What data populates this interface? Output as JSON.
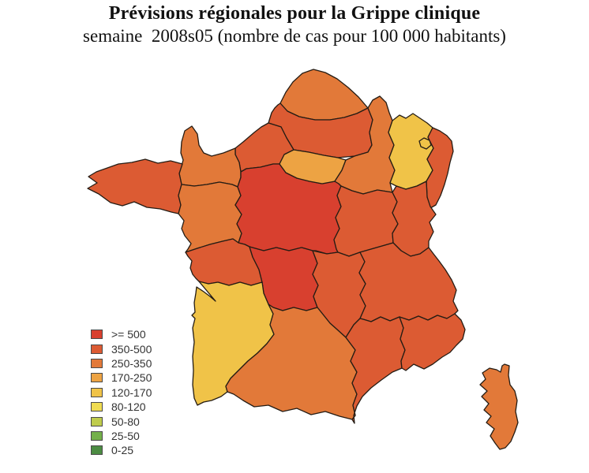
{
  "header": {
    "title": "Prévisions régionales pour la Grippe clinique",
    "subtitle": "semaine  2008s05 (nombre de cas pour 100 000 habitants)"
  },
  "legend": {
    "items": [
      {
        "label": ">= 500",
        "color": "#d8402f"
      },
      {
        "label": "350-500",
        "color": "#dc5b33"
      },
      {
        "label": "250-350",
        "color": "#e27939"
      },
      {
        "label": "170-250",
        "color": "#eda343"
      },
      {
        "label": "120-170",
        "color": "#f0c348"
      },
      {
        "label": "80-120",
        "color": "#f0dc52"
      },
      {
        "label": "50-80",
        "color": "#bfcc4c"
      },
      {
        "label": "25-50",
        "color": "#74b04a"
      },
      {
        "label": "0-25",
        "color": "#4c8c43"
      }
    ]
  },
  "chart_data": {
    "type": "choropleth-map",
    "title": "Prévisions régionales pour la Grippe clinique",
    "subtitle": "semaine  2008s05 (nombre de cas pour 100 000 habitants)",
    "unit": "cas pour 100 000 habitants",
    "week": "2008s05",
    "regions": [
      {
        "id": "nord-pas-de-calais",
        "name": "Nord-Pas-de-Calais",
        "value": "250-350"
      },
      {
        "id": "picardie",
        "name": "Picardie",
        "value": "350-500"
      },
      {
        "id": "haute-normandie",
        "name": "Haute-Normandie",
        "value": "350-500"
      },
      {
        "id": "basse-normandie",
        "name": "Basse-Normandie",
        "value": "250-350"
      },
      {
        "id": "bretagne",
        "name": "Bretagne",
        "value": "350-500"
      },
      {
        "id": "pays-de-la-loire",
        "name": "Pays de la Loire",
        "value": "250-350"
      },
      {
        "id": "centre",
        "name": "Centre",
        "value": ">= 500"
      },
      {
        "id": "ile-de-france",
        "name": "Île-de-France",
        "value": "170-250"
      },
      {
        "id": "champagne-ardenne",
        "name": "Champagne-Ardenne",
        "value": "250-350"
      },
      {
        "id": "lorraine",
        "name": "Lorraine",
        "value": "120-170"
      },
      {
        "id": "alsace",
        "name": "Alsace",
        "value": "350-500"
      },
      {
        "id": "bourgogne",
        "name": "Bourgogne",
        "value": "350-500"
      },
      {
        "id": "franche-comte",
        "name": "Franche-Comté",
        "value": "350-500"
      },
      {
        "id": "poitou-charentes",
        "name": "Poitou-Charentes",
        "value": "350-500"
      },
      {
        "id": "limousin",
        "name": "Limousin",
        "value": ">= 500"
      },
      {
        "id": "auvergne",
        "name": "Auvergne",
        "value": "350-500"
      },
      {
        "id": "rhone-alpes",
        "name": "Rhône-Alpes",
        "value": "350-500"
      },
      {
        "id": "aquitaine",
        "name": "Aquitaine",
        "value": "120-170"
      },
      {
        "id": "midi-pyrenees",
        "name": "Midi-Pyrénées",
        "value": "250-350"
      },
      {
        "id": "languedoc-roussillon",
        "name": "Languedoc-Roussillon",
        "value": "350-500"
      },
      {
        "id": "paca",
        "name": "Provence-Alpes-Côte d'Azur",
        "value": "350-500"
      },
      {
        "id": "corse",
        "name": "Corse",
        "value": "250-350"
      }
    ]
  }
}
